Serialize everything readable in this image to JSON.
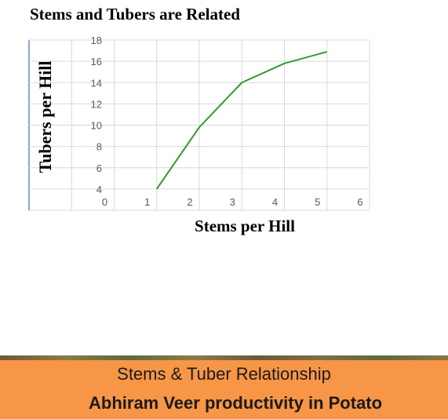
{
  "chart_data": {
    "type": "line",
    "title": "Stems and Tubers are Related",
    "xlabel": "Stems per Hill",
    "ylabel": "Tubers per Hill",
    "x_ticks": [
      "0",
      "1",
      "2",
      "3",
      "4",
      "5",
      "6"
    ],
    "y_ticks": [
      "4",
      "6",
      "8",
      "10",
      "12",
      "14",
      "16",
      "18"
    ],
    "xlim": [
      -2,
      6
    ],
    "ylim": [
      2,
      18
    ],
    "grid": true,
    "series": [
      {
        "color": "#339933",
        "x": [
          1,
          2,
          3,
          4,
          5
        ],
        "y": [
          4,
          9.8,
          14,
          15.8,
          16.9
        ]
      }
    ]
  },
  "banner": {
    "line1": "Stems & Tuber Relationship",
    "line2": "Abhiram Veer productivity in Potato",
    "color": "#f79646"
  }
}
